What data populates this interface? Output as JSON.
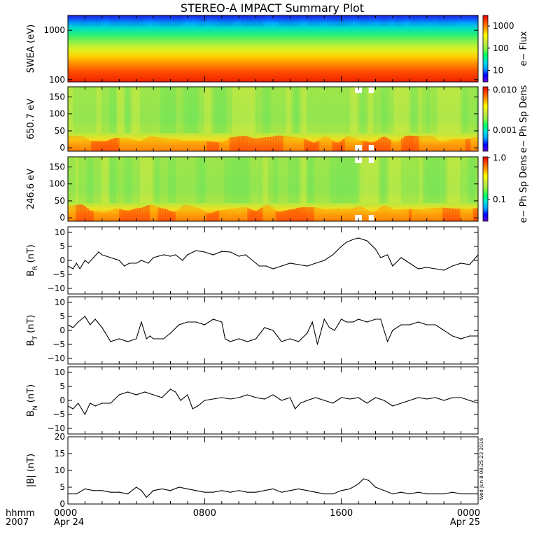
{
  "title": "STEREO-A IMPACT Summary Plot",
  "timestamp": "Wed Jun 8 08:25:23 2016",
  "x_axis": {
    "row1_label": "hhmm",
    "row2_label": "2007",
    "ticks": [
      {
        "hours": 0,
        "label": "0000",
        "sublabel": "Apr 24"
      },
      {
        "hours": 8,
        "label": "0800",
        "sublabel": ""
      },
      {
        "hours": 16,
        "label": "1600",
        "sublabel": ""
      },
      {
        "hours": 24,
        "label": "0000",
        "sublabel": "Apr 25"
      }
    ],
    "range_hours": [
      0,
      24
    ]
  },
  "colors": {
    "colormap": [
      "#6a00d8",
      "#0000ff",
      "#00a0ff",
      "#00e0e0",
      "#00ff60",
      "#90ee40",
      "#c8e840",
      "#ffff00",
      "#ffa000",
      "#ff5000",
      "#e00000"
    ],
    "line": "#000000",
    "missing": "#ffffff"
  },
  "chart_data": [
    {
      "type": "heatmap",
      "id": "swea",
      "ylabel": "SWEA (eV)",
      "yscale": "log",
      "ylim": [
        90,
        2000
      ],
      "yticks": [
        {
          "v": 100,
          "l": "100"
        },
        {
          "v": 1000,
          "l": "1000"
        }
      ],
      "colorbar_label": "e− Flux",
      "colorbar_scale": "log",
      "colorbar_range": [
        3,
        3000
      ],
      "colorbar_ticks": [
        {
          "v": 10,
          "l": "10"
        },
        {
          "v": 100,
          "l": "100"
        },
        {
          "v": 1000,
          "l": "1000"
        }
      ]
    },
    {
      "type": "heatmap",
      "id": "pad650",
      "ylabel": "650.7 eV",
      "ylim": [
        -10,
        180
      ],
      "yticks": [
        {
          "v": 0,
          "l": "0"
        },
        {
          "v": 50,
          "l": "50"
        },
        {
          "v": 100,
          "l": "100"
        },
        {
          "v": 150,
          "l": "150"
        }
      ],
      "colorbar_label": "e− Ph Sp Dens",
      "colorbar_scale": "log",
      "colorbar_range": [
        0.0003,
        0.012
      ],
      "colorbar_ticks": [
        {
          "v": 0.001,
          "l": "0.001"
        },
        {
          "v": 0.01,
          "l": "0.010"
        }
      ]
    },
    {
      "type": "heatmap",
      "id": "pad246",
      "ylabel": "246.6 eV",
      "ylim": [
        -10,
        180
      ],
      "yticks": [
        {
          "v": 0,
          "l": "0"
        },
        {
          "v": 50,
          "l": "50"
        },
        {
          "v": 100,
          "l": "100"
        },
        {
          "v": 150,
          "l": "150"
        }
      ],
      "colorbar_label": "e− Ph Sp Dens",
      "colorbar_scale": "log",
      "colorbar_range": [
        0.03,
        1.05
      ],
      "colorbar_ticks": [
        {
          "v": 0.1,
          "l": "0.1"
        },
        {
          "v": 1.0,
          "l": "1.0"
        }
      ]
    },
    {
      "type": "line",
      "id": "br",
      "ylabel": "B",
      "ylabel_sub": "R",
      "ylabel_unit": " (nT)",
      "ylim": [
        -12,
        12
      ],
      "yticks": [
        {
          "v": -10,
          "l": "−10"
        },
        {
          "v": -5,
          "l": "−5"
        },
        {
          "v": 0,
          "l": "0"
        },
        {
          "v": 5,
          "l": "5"
        },
        {
          "v": 10,
          "l": "10"
        }
      ],
      "x": [
        0,
        0.3,
        0.5,
        0.7,
        1.0,
        1.2,
        1.5,
        1.8,
        2.0,
        2.5,
        3.0,
        3.3,
        3.6,
        4.0,
        4.3,
        4.7,
        5.0,
        5.3,
        5.6,
        6.0,
        6.3,
        6.7,
        7.0,
        7.5,
        8.0,
        8.5,
        9.0,
        9.5,
        10.0,
        10.4,
        10.8,
        11.2,
        11.6,
        12.0,
        12.5,
        13.0,
        13.5,
        14.0,
        14.5,
        15.0,
        15.5,
        16.0,
        16.3,
        16.7,
        17.0,
        17.5,
        18.0,
        18.3,
        18.7,
        19.0,
        19.5,
        20.0,
        20.5,
        21.0,
        21.5,
        22.0,
        22.5,
        23.0,
        23.5,
        24.0
      ],
      "y": [
        -2,
        -3,
        -1,
        -3,
        0,
        -1,
        1,
        3,
        2,
        1,
        0,
        -2,
        -1,
        -1,
        0,
        -1,
        1,
        1.5,
        2,
        1.5,
        2,
        0,
        2,
        3.5,
        3,
        2,
        3.2,
        3,
        1.5,
        2,
        0,
        -2,
        -2,
        -3,
        -2,
        -1,
        -1.5,
        -2,
        -1,
        0,
        2,
        5,
        6.5,
        7.5,
        8,
        7,
        4,
        1,
        2,
        -2,
        1,
        -1,
        -3,
        -2.5,
        -3,
        -3.5,
        -2,
        -1,
        -1.5,
        2
      ]
    },
    {
      "type": "line",
      "id": "bt",
      "ylabel": "B",
      "ylabel_sub": "T",
      "ylabel_unit": " (nT)",
      "ylim": [
        -12,
        12
      ],
      "yticks": [
        {
          "v": -10,
          "l": "−10"
        },
        {
          "v": -5,
          "l": "−5"
        },
        {
          "v": 0,
          "l": "0"
        },
        {
          "v": 5,
          "l": "5"
        },
        {
          "v": 10,
          "l": "10"
        }
      ],
      "x": [
        0,
        0.3,
        0.6,
        1.0,
        1.3,
        1.6,
        2.0,
        2.5,
        3.0,
        3.5,
        4.0,
        4.3,
        4.6,
        4.8,
        5.0,
        5.3,
        5.6,
        6.0,
        6.5,
        7.0,
        7.5,
        8.0,
        8.5,
        9.0,
        9.2,
        9.5,
        10.0,
        10.5,
        11.0,
        11.5,
        12.0,
        12.5,
        13.0,
        13.5,
        14.0,
        14.3,
        14.6,
        15.0,
        15.3,
        15.6,
        16.0,
        16.3,
        16.7,
        17.0,
        17.5,
        18.0,
        18.3,
        18.7,
        19.0,
        19.5,
        20.0,
        20.5,
        21.0,
        21.5,
        22.0,
        22.5,
        23.0,
        23.5,
        24.0
      ],
      "y": [
        2,
        1,
        3,
        5,
        2,
        4,
        1,
        -4,
        -3,
        -4,
        -3,
        3,
        -3,
        -2,
        -3,
        -3,
        -3,
        -1,
        2,
        3,
        3,
        2,
        4,
        3,
        -3,
        -4,
        -3,
        -4,
        -3,
        1,
        0,
        -4,
        -3,
        -4,
        -1,
        3,
        -5,
        4,
        1,
        0,
        4,
        3,
        3,
        4,
        3,
        4,
        4,
        -4,
        0,
        2,
        2,
        3,
        2,
        2,
        0,
        -2,
        -3,
        -2,
        -2
      ]
    },
    {
      "type": "line",
      "id": "bn",
      "ylabel": "B",
      "ylabel_sub": "N",
      "ylabel_unit": " (nT)",
      "ylim": [
        -12,
        12
      ],
      "yticks": [
        {
          "v": -10,
          "l": "−10"
        },
        {
          "v": -5,
          "l": "−5"
        },
        {
          "v": 0,
          "l": "0"
        },
        {
          "v": 5,
          "l": "5"
        },
        {
          "v": 10,
          "l": "10"
        }
      ],
      "x": [
        0,
        0.3,
        0.6,
        1.0,
        1.3,
        1.6,
        2.0,
        2.5,
        3.0,
        3.5,
        4.0,
        4.5,
        5.0,
        5.5,
        6.0,
        6.3,
        6.6,
        7.0,
        7.3,
        7.6,
        8.0,
        8.5,
        9.0,
        9.5,
        10.0,
        10.5,
        11.0,
        11.5,
        12.0,
        12.5,
        13.0,
        13.3,
        13.6,
        14.0,
        14.5,
        15.0,
        15.5,
        16.0,
        16.5,
        17.0,
        17.5,
        18.0,
        18.5,
        19.0,
        19.5,
        20.0,
        20.5,
        21.0,
        21.5,
        22.0,
        22.5,
        23.0,
        23.5,
        24.0
      ],
      "y": [
        -2,
        -3,
        -1,
        -5,
        -1,
        -2,
        -1,
        -1,
        2,
        3,
        2,
        3,
        2,
        1,
        4,
        3,
        0,
        2,
        -3,
        -2,
        0,
        0.5,
        1,
        0.5,
        1,
        2,
        1,
        0.5,
        2,
        0,
        1,
        -3,
        -1,
        0,
        1,
        0,
        -1,
        1,
        0.5,
        1,
        -1,
        1,
        0,
        -2,
        -1,
        0,
        1,
        0.5,
        1,
        0,
        1,
        1,
        0,
        -1
      ]
    },
    {
      "type": "line",
      "id": "bmag",
      "ylabel": "|B| (nT)",
      "ylim": [
        0,
        20
      ],
      "yticks": [
        {
          "v": 0,
          "l": "0"
        },
        {
          "v": 5,
          "l": "5"
        },
        {
          "v": 10,
          "l": "10"
        },
        {
          "v": 15,
          "l": "15"
        },
        {
          "v": 20,
          "l": "20"
        }
      ],
      "x": [
        0,
        0.5,
        1.0,
        1.5,
        2.0,
        2.5,
        3.0,
        3.5,
        4.0,
        4.3,
        4.6,
        5.0,
        5.5,
        6.0,
        6.5,
        7.0,
        7.5,
        8.0,
        8.5,
        9.0,
        9.5,
        10.0,
        10.5,
        11.0,
        11.5,
        12.0,
        12.5,
        13.0,
        13.5,
        14.0,
        14.5,
        15.0,
        15.5,
        16.0,
        16.5,
        17.0,
        17.3,
        17.6,
        18.0,
        18.5,
        19.0,
        19.5,
        20.0,
        20.5,
        21.0,
        21.5,
        22.0,
        22.5,
        23.0,
        23.5,
        24.0
      ],
      "y": [
        3,
        3,
        4.5,
        4,
        4,
        3.5,
        3.5,
        3,
        5,
        4,
        2,
        4,
        4.5,
        4,
        5,
        4.5,
        4,
        3.5,
        3.5,
        4,
        3.5,
        4,
        3.5,
        3.5,
        4,
        4.5,
        3.5,
        4,
        4.5,
        4,
        3.5,
        3,
        3,
        4,
        4.5,
        6,
        7.5,
        7,
        5,
        4,
        3,
        3.5,
        3,
        3.5,
        3,
        3,
        3,
        3.5,
        3,
        3,
        3
      ]
    }
  ]
}
